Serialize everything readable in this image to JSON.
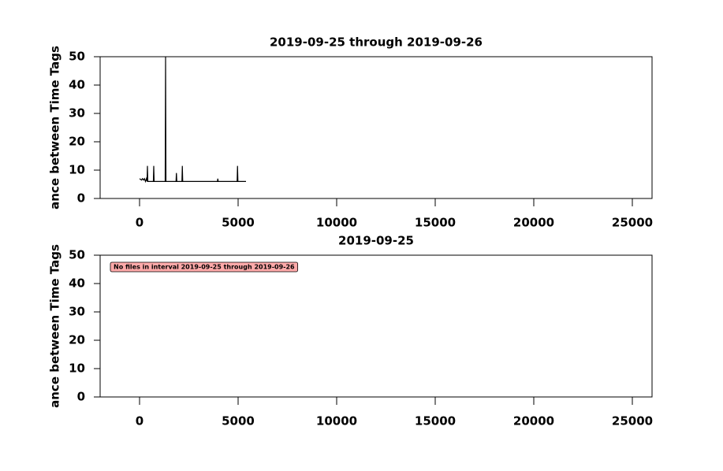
{
  "chart_data": [
    {
      "type": "line",
      "title": "2019-09-25 through 2019-09-26",
      "ylabel": "ance between Time Tags",
      "x": [
        0,
        100,
        150,
        200,
        250,
        300,
        350,
        380,
        400,
        420,
        450,
        700,
        720,
        740,
        1300,
        1320,
        1340,
        1850,
        1870,
        1890,
        2150,
        2170,
        2190,
        3000,
        3950,
        3970,
        3990,
        4950,
        4970,
        4990,
        5400
      ],
      "values": [
        7,
        6.5,
        7,
        6.5,
        7,
        6,
        7,
        6,
        11.5,
        6,
        6,
        6,
        11.5,
        6,
        6,
        50,
        6,
        6,
        9,
        6,
        6,
        11.5,
        6,
        6,
        6,
        7,
        6,
        6,
        11.5,
        6,
        6
      ],
      "color": "#000000",
      "xlim": [
        -2000,
        26000
      ],
      "xticks": [
        0,
        5000,
        10000,
        15000,
        20000,
        25000
      ],
      "ylim": [
        0,
        50
      ],
      "yticks": [
        0,
        10,
        20,
        30,
        40,
        50
      ]
    },
    {
      "type": "line",
      "title": "2019-09-25",
      "ylabel": "ance between Time Tags",
      "annotation": "No files in interval 2019-09-25 through 2019-09-26",
      "annotation_color": "#ffaaaa",
      "x": [],
      "values": [],
      "color": "#000000",
      "xlim": [
        -2000,
        26000
      ],
      "xticks": [
        0,
        5000,
        10000,
        15000,
        20000,
        25000
      ],
      "ylim": [
        0,
        50
      ],
      "yticks": [
        0,
        10,
        20,
        30,
        40,
        50
      ]
    }
  ]
}
